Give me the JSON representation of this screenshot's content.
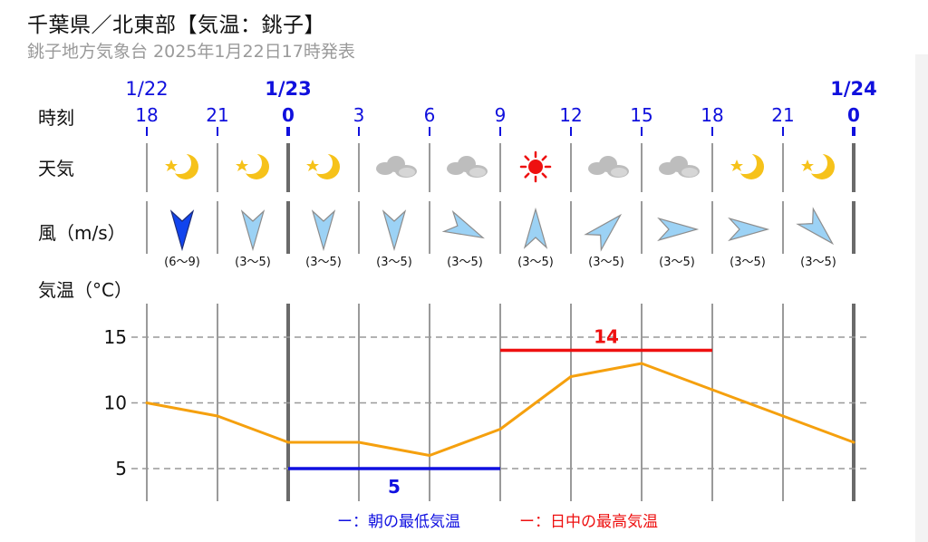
{
  "header": {
    "title": "千葉県／北東部【気温：銚子】",
    "subtitle": "銚子地方気象台 2025年1月22日17時発表"
  },
  "rows": {
    "time_label": "時刻",
    "weather_label": "天気",
    "wind_label": "風（m/s）",
    "temp_label": "気温（°C）"
  },
  "legend": {
    "min_text": "ー：朝の最低気温",
    "max_text": "ー：日中の最高気温"
  },
  "colors": {
    "line": "#f5a00e",
    "min": "#1010e0",
    "max": "#ee1010",
    "date": "#1010dd",
    "wind_strong": "#1144ee",
    "wind_light": "#9cd2f5",
    "sun": "#ee1010",
    "moon": "#f6c21a",
    "cloud": "#bdbdbd"
  },
  "chart_data": {
    "type": "line",
    "title": "千葉県／北東部【気温：銚子】",
    "subtitle": "銚子地方気象台 2025年1月22日17時発表",
    "date_labels": [
      {
        "index": 0,
        "text": "1/22",
        "bold": false
      },
      {
        "index": 2,
        "text": "1/23",
        "bold": true
      },
      {
        "index": 10,
        "text": "1/24",
        "bold": true
      }
    ],
    "hours": [
      "18",
      "21",
      "0",
      "3",
      "6",
      "9",
      "12",
      "15",
      "18",
      "21",
      "0"
    ],
    "day_boundary_indices": [
      2,
      10
    ],
    "weather": [
      "moon",
      "moon",
      "moon",
      "cloud",
      "cloud",
      "sun",
      "cloud",
      "cloud",
      "moon",
      "moon"
    ],
    "wind": [
      {
        "speed": "(6〜9)",
        "heading": "S",
        "strong": true
      },
      {
        "speed": "(3〜5)",
        "heading": "S",
        "strong": false
      },
      {
        "speed": "(3〜5)",
        "heading": "S",
        "strong": false
      },
      {
        "speed": "(3〜5)",
        "heading": "S",
        "strong": false
      },
      {
        "speed": "(3〜5)",
        "heading": "ESE",
        "strong": false
      },
      {
        "speed": "(3〜5)",
        "heading": "N",
        "strong": false
      },
      {
        "speed": "(3〜5)",
        "heading": "NE",
        "strong": false
      },
      {
        "speed": "(3〜5)",
        "heading": "E",
        "strong": false
      },
      {
        "speed": "(3〜5)",
        "heading": "E",
        "strong": false
      },
      {
        "speed": "(3〜5)",
        "heading": "SE",
        "strong": false
      }
    ],
    "series": [
      {
        "values": [
          10,
          9,
          7,
          7,
          6,
          8,
          12,
          13,
          11,
          9,
          7
        ]
      }
    ],
    "ylim": [
      3,
      17.2
    ],
    "yticks": [
      5,
      10,
      15
    ],
    "grid": true,
    "min_temp": {
      "value": 5,
      "from_index": 2,
      "to_index": 5
    },
    "max_temp": {
      "value": 14,
      "from_index": 5,
      "to_index": 8
    }
  }
}
